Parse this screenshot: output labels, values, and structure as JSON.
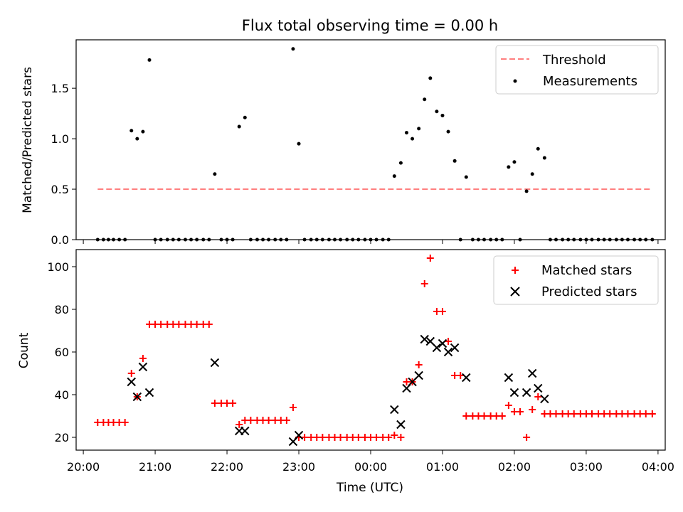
{
  "title": "Flux total observing time = 0.00 h",
  "chart_data": [
    {
      "type": "scatter",
      "ylabel": "Matched/Predicted stars",
      "xlabel": "",
      "x_unit": "hours since 20:00 UTC",
      "xlim": [
        -0.1,
        8.1
      ],
      "ylim": [
        0,
        1.98
      ],
      "yticks": [
        0.0,
        0.5,
        1.0,
        1.5
      ],
      "ytick_labels": [
        "0.0",
        "0.5",
        "1.0",
        "1.5"
      ],
      "legend_position": "top-right",
      "legend": [
        "Threshold",
        "Measurements"
      ],
      "threshold": {
        "name": "Threshold",
        "color": "#ff7f7f",
        "style": "dashed",
        "value": 0.5,
        "x_range": [
          0.2,
          7.9
        ]
      },
      "series": [
        {
          "name": "Measurements",
          "color": "#000000",
          "x": [
            0.2,
            0.28,
            0.35,
            0.42,
            0.5,
            0.58,
            0.67,
            0.75,
            0.83,
            0.92,
            1.0,
            1.08,
            1.17,
            1.25,
            1.33,
            1.42,
            1.5,
            1.58,
            1.67,
            1.75,
            1.83,
            1.92,
            2.0,
            2.08,
            2.17,
            2.25,
            2.33,
            2.42,
            2.5,
            2.58,
            2.67,
            2.75,
            2.83,
            2.92,
            3.0,
            3.08,
            3.17,
            3.25,
            3.33,
            3.42,
            3.5,
            3.58,
            3.67,
            3.75,
            3.83,
            3.92,
            4.0,
            4.08,
            4.17,
            4.25,
            4.33,
            4.42,
            4.5,
            4.58,
            4.67,
            4.75,
            4.83,
            4.92,
            5.0,
            5.08,
            5.17,
            5.25,
            5.33,
            5.42,
            5.5,
            5.58,
            5.67,
            5.75,
            5.83,
            5.92,
            6.0,
            6.08,
            6.17,
            6.25,
            6.33,
            6.42,
            6.5,
            6.58,
            6.67,
            6.75,
            6.83,
            6.92,
            7.0,
            7.08,
            7.17,
            7.25,
            7.33,
            7.42,
            7.5,
            7.58,
            7.67,
            7.75,
            7.83,
            7.92
          ],
          "y": [
            0,
            0,
            0,
            0,
            0,
            0,
            1.08,
            1.0,
            1.07,
            1.78,
            0,
            0,
            0,
            0,
            0,
            0,
            0,
            0,
            0,
            0,
            0.65,
            0,
            0,
            0,
            1.12,
            1.21,
            0,
            0,
            0,
            0,
            0,
            0,
            0,
            1.89,
            0.95,
            0,
            0,
            0,
            0,
            0,
            0,
            0,
            0,
            0,
            0,
            0,
            0,
            0,
            0,
            0,
            0.63,
            0.76,
            1.06,
            1.0,
            1.1,
            1.39,
            1.6,
            1.27,
            1.23,
            1.07,
            0.78,
            0,
            0.62,
            0,
            0,
            0,
            0,
            0,
            0,
            0.72,
            0.77,
            0,
            0.48,
            0.65,
            0.9,
            0.81,
            0,
            0,
            0,
            0,
            0,
            0,
            0,
            0,
            0,
            0,
            0,
            0,
            0,
            0,
            0,
            0,
            0,
            0
          ]
        }
      ]
    },
    {
      "type": "scatter",
      "ylabel": "Count",
      "xlabel": "Time (UTC)",
      "x_unit": "hours since 20:00 UTC",
      "xlim": [
        -0.1,
        8.1
      ],
      "ylim": [
        14,
        108
      ],
      "yticks": [
        20,
        40,
        60,
        80,
        100
      ],
      "ytick_labels": [
        "20",
        "40",
        "60",
        "80",
        "100"
      ],
      "xticks": [
        0,
        1,
        2,
        3,
        4,
        5,
        6,
        7,
        8
      ],
      "xtick_labels": [
        "20:00",
        "21:00",
        "22:00",
        "23:00",
        "00:00",
        "01:00",
        "02:00",
        "03:00",
        "04:00"
      ],
      "legend_position": "top-right",
      "legend": [
        "Matched stars",
        "Predicted stars"
      ],
      "series": [
        {
          "name": "Matched stars",
          "color": "#ff0000",
          "marker": "+",
          "x": [
            0.2,
            0.28,
            0.35,
            0.42,
            0.5,
            0.58,
            0.67,
            0.75,
            0.83,
            0.92,
            1.0,
            1.08,
            1.17,
            1.25,
            1.33,
            1.42,
            1.5,
            1.58,
            1.67,
            1.75,
            1.83,
            1.92,
            2.0,
            2.08,
            2.17,
            2.25,
            2.33,
            2.42,
            2.5,
            2.58,
            2.67,
            2.75,
            2.83,
            2.92,
            3.0,
            3.08,
            3.17,
            3.25,
            3.33,
            3.42,
            3.5,
            3.58,
            3.67,
            3.75,
            3.83,
            3.92,
            4.0,
            4.08,
            4.17,
            4.25,
            4.33,
            4.42,
            4.5,
            4.58,
            4.67,
            4.75,
            4.83,
            4.92,
            5.0,
            5.08,
            5.17,
            5.25,
            5.33,
            5.42,
            5.5,
            5.58,
            5.67,
            5.75,
            5.83,
            5.92,
            6.0,
            6.08,
            6.17,
            6.25,
            6.33,
            6.42,
            6.5,
            6.58,
            6.67,
            6.75,
            6.83,
            6.92,
            7.0,
            7.08,
            7.17,
            7.25,
            7.33,
            7.42,
            7.5,
            7.58,
            7.67,
            7.75,
            7.83,
            7.92
          ],
          "y": [
            27,
            27,
            27,
            27,
            27,
            27,
            50,
            39,
            57,
            73,
            73,
            73,
            73,
            73,
            73,
            73,
            73,
            73,
            73,
            73,
            36,
            36,
            36,
            36,
            26,
            28,
            28,
            28,
            28,
            28,
            28,
            28,
            28,
            34,
            20,
            20,
            20,
            20,
            20,
            20,
            20,
            20,
            20,
            20,
            20,
            20,
            20,
            20,
            20,
            20,
            21,
            20,
            46,
            46,
            54,
            92,
            104,
            79,
            79,
            65,
            49,
            49,
            30,
            30,
            30,
            30,
            30,
            30,
            30,
            35,
            32,
            32,
            20,
            33,
            39,
            31,
            31,
            31,
            31,
            31,
            31,
            31,
            31,
            31,
            31,
            31,
            31,
            31,
            31,
            31,
            31,
            31,
            31,
            31
          ]
        },
        {
          "name": "Predicted stars",
          "color": "#000000",
          "marker": "x",
          "x": [
            0.67,
            0.75,
            0.83,
            0.92,
            1.83,
            2.17,
            2.25,
            2.92,
            3.0,
            4.33,
            4.42,
            4.5,
            4.58,
            4.67,
            4.75,
            4.83,
            4.92,
            5.0,
            5.08,
            5.17,
            5.33,
            5.92,
            6.0,
            6.17,
            6.25,
            6.33,
            6.42
          ],
          "y": [
            46,
            39,
            53,
            41,
            55,
            23,
            23,
            18,
            21,
            33,
            26,
            43,
            46,
            49,
            66,
            65,
            62,
            64,
            60,
            62,
            48,
            48,
            41,
            41,
            50,
            43,
            38
          ]
        }
      ]
    }
  ]
}
